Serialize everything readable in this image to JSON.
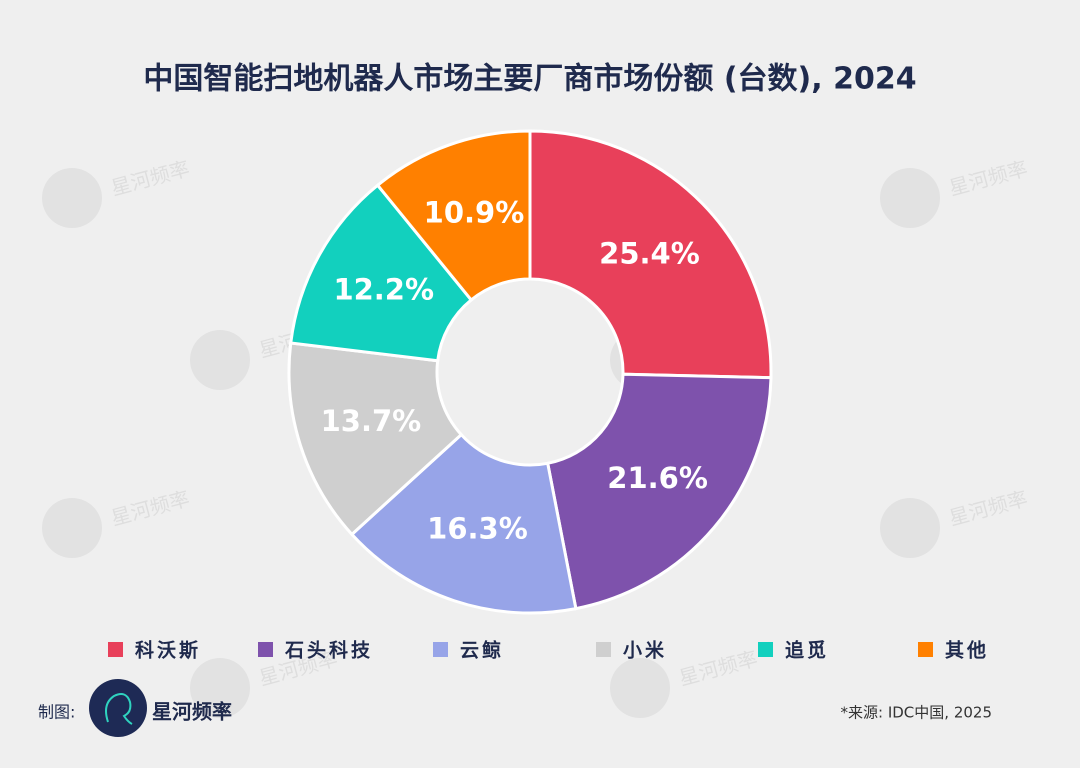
{
  "chart_data": {
    "type": "pie",
    "title": "中国智能扫地机器人市场主要厂商市场份额 (台数), 2024",
    "categories": [
      "科沃斯",
      "石头科技",
      "云鲸",
      "小米",
      "追觅",
      "其他"
    ],
    "values": [
      25.4,
      21.6,
      16.3,
      13.7,
      12.2,
      10.9
    ],
    "value_labels": [
      "25.4%",
      "21.6%",
      "16.3%",
      "13.7%",
      "12.2%",
      "10.9%"
    ],
    "colors": [
      "#e8405a",
      "#7e52ac",
      "#97a4e8",
      "#cfcfcf",
      "#12d0be",
      "#ff8000"
    ],
    "legend": "bottom"
  },
  "credit_label": "制图:",
  "brand": "星河频率",
  "source": "*来源: IDC中国, 2025"
}
